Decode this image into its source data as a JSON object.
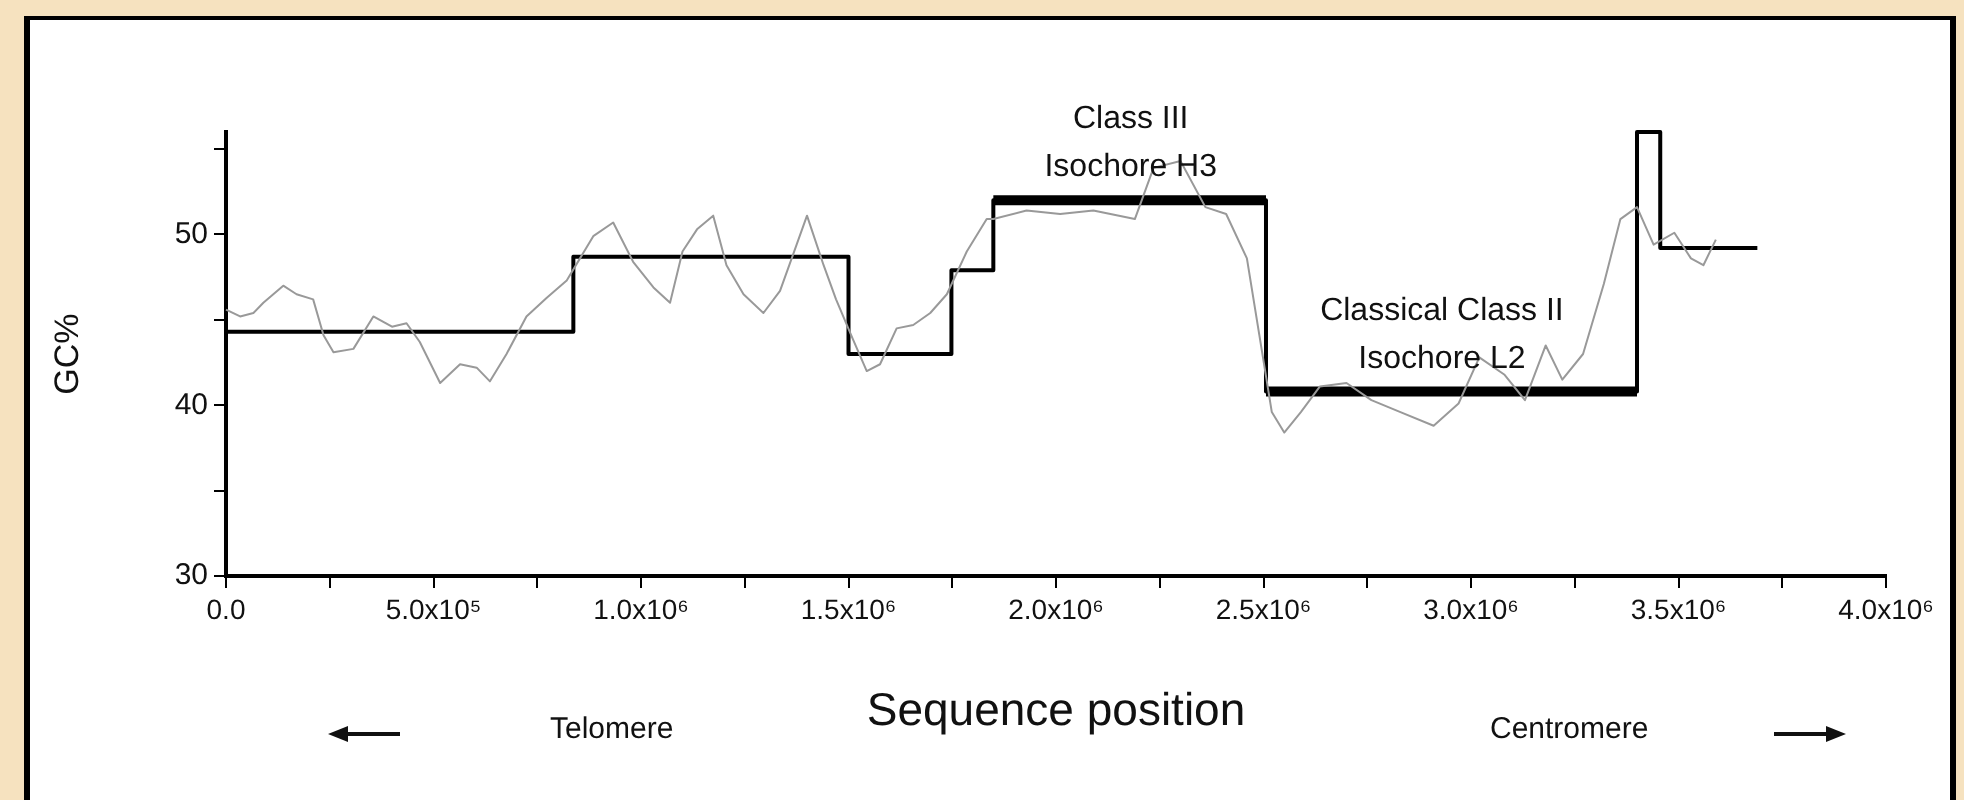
{
  "chart_data": {
    "type": "line",
    "xlabel": "Sequence position",
    "ylabel": "GC%",
    "xlim": [
      0,
      4000000
    ],
    "ylim": [
      30,
      56
    ],
    "xticks": [
      {
        "value": 0,
        "label": "0.0"
      },
      {
        "value": 250000,
        "label": null
      },
      {
        "value": 500000,
        "label": "5.0x10⁵"
      },
      {
        "value": 750000,
        "label": null
      },
      {
        "value": 1000000,
        "label": "1.0x10⁶"
      },
      {
        "value": 1250000,
        "label": null
      },
      {
        "value": 1500000,
        "label": "1.5x10⁶"
      },
      {
        "value": 1750000,
        "label": null
      },
      {
        "value": 2000000,
        "label": "2.0x10⁶"
      },
      {
        "value": 2250000,
        "label": null
      },
      {
        "value": 2500000,
        "label": "2.5x10⁶"
      },
      {
        "value": 2750000,
        "label": null
      },
      {
        "value": 3000000,
        "label": "3.0x10⁶"
      },
      {
        "value": 3250000,
        "label": null
      },
      {
        "value": 3500000,
        "label": "3.5x10⁶"
      },
      {
        "value": 3750000,
        "label": null
      },
      {
        "value": 4000000,
        "label": "4.0x10⁶"
      }
    ],
    "yticks": [
      30,
      {
        "value": 35,
        "label": null
      },
      40,
      {
        "value": 45,
        "label": null
      },
      50,
      {
        "value": 55,
        "label": null
      }
    ],
    "grid": false,
    "legend": false,
    "marker": "none",
    "series": [
      {
        "type": "line",
        "color": "#999999",
        "x": [
          0,
          34000,
          66000,
          90000,
          138000,
          170000,
          210000,
          235000,
          259000,
          307000,
          355000,
          400000,
          435000,
          467000,
          516000,
          564000,
          604000,
          636000,
          676000,
          724000,
          773000,
          821000,
          853000,
          885000,
          933000,
          981000,
          1030000,
          1070000,
          1100000,
          1135000,
          1174000,
          1206000,
          1247000,
          1295000,
          1335000,
          1375000,
          1400000,
          1440000,
          1470000,
          1510000,
          1544000,
          1576000,
          1616000,
          1656000,
          1697000,
          1737000,
          1785000,
          1833000,
          1849000,
          1929000,
          2010000,
          2090000,
          2190000,
          2235000,
          2300000,
          2360000,
          2410000,
          2460000,
          2490000,
          2520000,
          2550000,
          2590000,
          2636000,
          2700000,
          2760000,
          2830000,
          2910000,
          2970000,
          3020000,
          3080000,
          3130000,
          3180000,
          3220000,
          3270000,
          3320000,
          3360000,
          3400000,
          3440000,
          3490000,
          3530000,
          3560000,
          3590000
        ],
        "values": [
          45.6,
          45.2,
          45.4,
          46.0,
          47.0,
          46.5,
          46.2,
          44.1,
          43.1,
          43.3,
          45.2,
          44.6,
          44.8,
          43.7,
          41.3,
          42.4,
          42.2,
          41.4,
          43.0,
          45.2,
          46.3,
          47.3,
          48.6,
          49.9,
          50.7,
          48.4,
          46.9,
          46.0,
          49.0,
          50.3,
          51.1,
          48.2,
          46.5,
          45.4,
          46.7,
          49.4,
          51.1,
          48.2,
          46.2,
          43.9,
          42.0,
          42.4,
          44.5,
          44.7,
          45.4,
          46.5,
          49.0,
          50.9,
          50.9,
          51.4,
          51.2,
          51.4,
          50.9,
          53.9,
          54.3,
          51.6,
          51.2,
          48.6,
          44.1,
          39.6,
          38.4,
          39.6,
          41.1,
          41.3,
          40.3,
          39.6,
          38.8,
          40.1,
          42.8,
          41.8,
          40.3,
          43.5,
          41.5,
          43.0,
          47.1,
          50.9,
          51.6,
          49.4,
          50.1,
          48.6,
          48.2,
          49.7
        ]
      },
      {
        "type": "step",
        "color": "#000000",
        "x": [
          0,
          837000,
          1500000,
          1748000,
          1849000,
          2506000,
          3400000,
          3456000,
          3690000
        ],
        "values": [
          44.3,
          48.7,
          43.0,
          47.9,
          52.0,
          40.8,
          56.0,
          49.2,
          49.2
        ]
      },
      {
        "type": "line",
        "color": "#000000",
        "x": [
          1849000,
          2506000
        ],
        "values": [
          52.0,
          52.0
        ]
      },
      {
        "type": "line",
        "color": "#000000",
        "x": [
          2506000,
          3400000
        ],
        "values": [
          40.8,
          40.8
        ]
      }
    ],
    "annotations": [
      {
        "text": "Class III\nIsochore H3",
        "x": 2180000,
        "y": 52.0
      },
      {
        "text": "Classical Class II\nIsochore L2",
        "x": 2930000,
        "y": 40.8
      },
      "Telomere",
      "Centromere"
    ]
  }
}
